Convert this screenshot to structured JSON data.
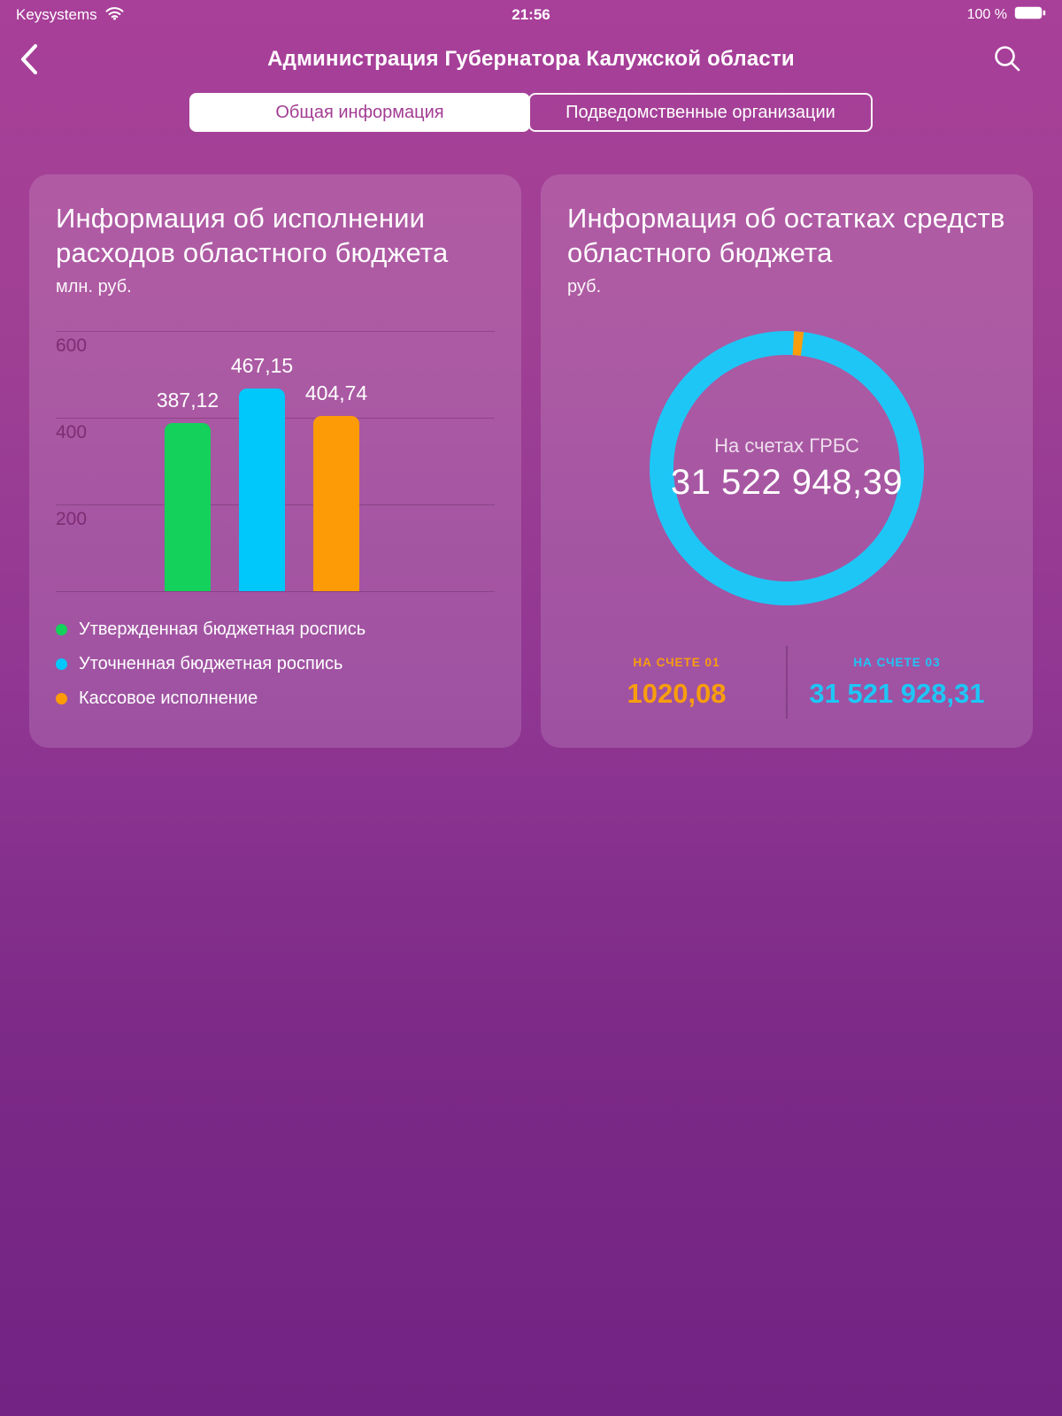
{
  "status_bar": {
    "carrier": "Keysystems",
    "time": "21:56",
    "battery": "100 %"
  },
  "header": {
    "title": "Администрация Губернатора Калужской области"
  },
  "tabs": [
    {
      "label": "Общая информация",
      "selected": true
    },
    {
      "label": "Подведомственные организации",
      "selected": false
    }
  ],
  "chart_data": [
    {
      "type": "bar",
      "title": "Информация об исполнении расходов областного бюджета",
      "units": "млн. руб.",
      "categories": [
        "Утвержденная бюджетная роспись",
        "Уточненная бюджетная роспись",
        "Кассовое исполнение"
      ],
      "values": [
        387.12,
        467.15,
        404.74
      ],
      "value_labels": [
        "387,12",
        "467,15",
        "404,74"
      ],
      "colors": [
        "#13d15b",
        "#00c8fa",
        "#fc9b05"
      ],
      "ylim": [
        0,
        600
      ],
      "yticks": [
        200,
        400,
        600
      ],
      "grid": true,
      "legend_position": "bottom"
    },
    {
      "type": "pie",
      "title": "Информация об остатках средств областного бюджета",
      "units": "руб.",
      "center_label": "На счетах ГРБС",
      "center_value": "31 522 948,39",
      "slices": [
        {
          "label": "НА СЧЕТЕ 01",
          "value": 1020.08,
          "display": "1020,08",
          "color": "#f89d0e"
        },
        {
          "label": "НА СЧЕТЕ 03",
          "value": 31521928.31,
          "display": "31 521 928,31",
          "color": "#1ec6f6"
        }
      ]
    }
  ]
}
